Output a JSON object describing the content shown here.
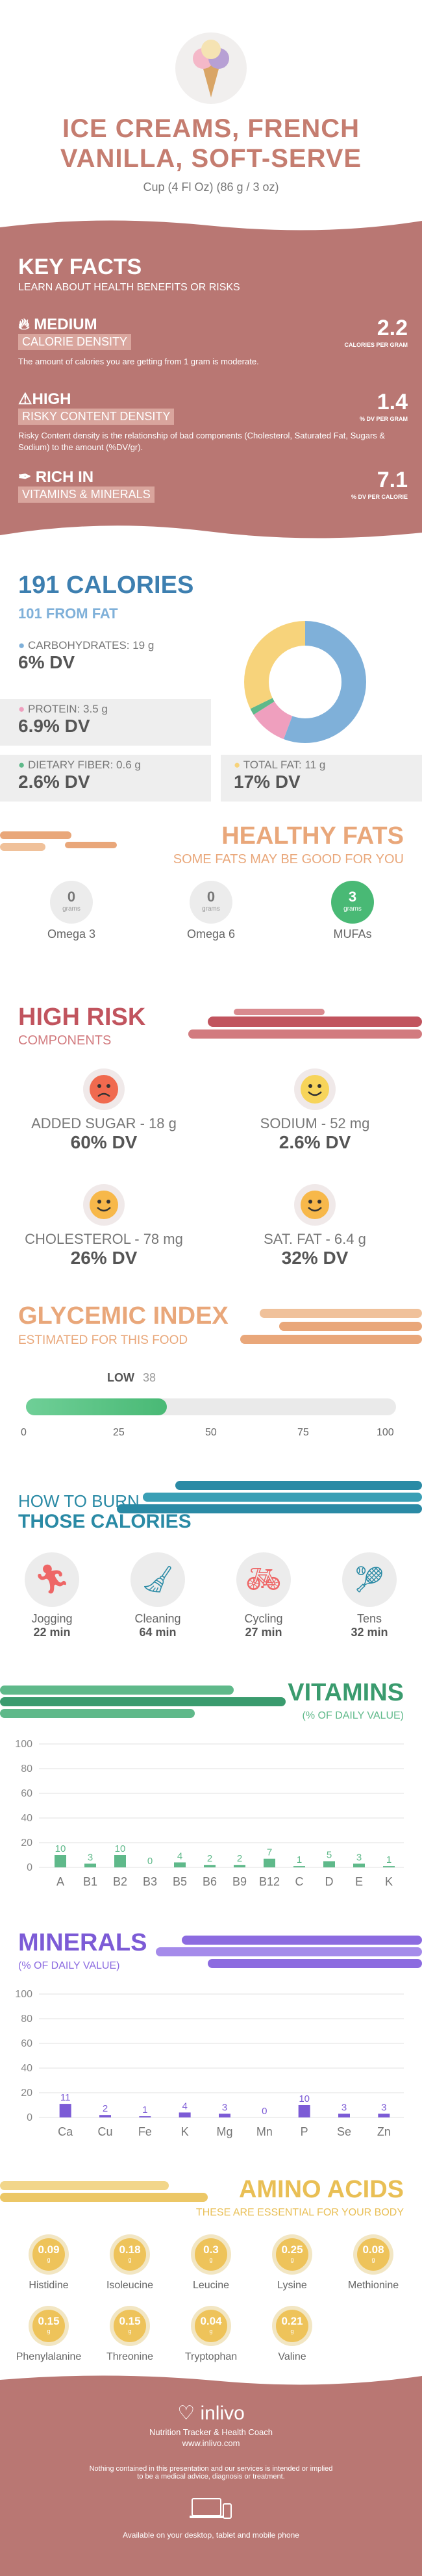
{
  "header": {
    "title_line1": "ICE CREAMS, FRENCH",
    "title_line2": "VANILLA, SOFT-SERVE",
    "serving": "Cup (4 Fl Oz) (86 g / 3 oz)"
  },
  "key_facts": {
    "title": "KEY FACTS",
    "subtitle": "LEARN ABOUT HEALTH BENEFITS OR RISKS",
    "items": [
      {
        "level": "MEDIUM",
        "name": "CALORIE DENSITY",
        "value": "2.2",
        "unit": "CALORIES PER GRAM",
        "desc": "The amount of calories you are getting from 1 gram is moderate."
      },
      {
        "level": "HIGH",
        "name": "RISKY CONTENT DENSITY",
        "value": "1.4",
        "unit": "% DV PER GRAM",
        "desc": "Risky Content density is the relationship of bad components (Cholesterol, Saturated Fat, Sugars & Sodium) to the amount (%DV/gr)."
      },
      {
        "level": "RICH IN",
        "name": "VITAMINS & MINERALS",
        "value": "7.1",
        "unit": "% DV PER CALORIE",
        "desc": ""
      }
    ]
  },
  "calories": {
    "title": "191 CALORIES",
    "from_fat": "101 FROM FAT",
    "carbs_label": "CARBOHYDRATES: 19 g",
    "carbs_dv": "6% DV",
    "protein_label": "PROTEIN: 3.5 g",
    "protein_dv": "6.9% DV",
    "fiber_label": "DIETARY FIBER: 0.6 g",
    "fiber_dv": "2.6% DV",
    "fat_label": "TOTAL FAT: 11 g",
    "fat_dv": "17% DV",
    "colors": {
      "carbs": "#7fb0d9",
      "protein": "#ef9fbe",
      "fiber": "#5fb98a",
      "fat": "#f7d37b"
    }
  },
  "chart_data": [
    {
      "type": "pie",
      "title": "",
      "categories": [
        "Carbohydrates",
        "Protein",
        "Dietary Fiber",
        "Total Fat"
      ],
      "values": [
        19,
        3.5,
        0.6,
        11
      ]
    },
    {
      "type": "bar",
      "title": "VITAMINS",
      "subtitle": "(% OF DAILY VALUE)",
      "categories": [
        "A",
        "B1",
        "B2",
        "B3",
        "B5",
        "B6",
        "B9",
        "B12",
        "C",
        "D",
        "E",
        "K"
      ],
      "values": [
        10,
        3,
        10,
        0,
        4,
        2,
        2,
        7,
        1,
        5,
        3,
        1
      ],
      "ylim": [
        0,
        100
      ],
      "yticks": [
        "0",
        "20",
        "40",
        "60",
        "80",
        "100"
      ]
    },
    {
      "type": "bar",
      "title": "MINERALS",
      "subtitle": "(% OF DAILY VALUE)",
      "categories": [
        "Ca",
        "Cu",
        "Fe",
        "K",
        "Mg",
        "Mn",
        "P",
        "Se",
        "Zn"
      ],
      "values": [
        11,
        2,
        1,
        4,
        3,
        0,
        10,
        3,
        3
      ],
      "ylim": [
        0,
        100
      ],
      "yticks": [
        "0",
        "20",
        "40",
        "60",
        "80",
        "100"
      ]
    }
  ],
  "healthy_fats": {
    "title": "HEALTHY FATS",
    "subtitle": "SOME FATS MAY BE GOOD FOR YOU",
    "items": [
      {
        "value": "0",
        "unit": "grams",
        "name": "Omega 3"
      },
      {
        "value": "0",
        "unit": "grams",
        "name": "Omega 6"
      },
      {
        "value": "3",
        "unit": "grams",
        "name": "MUFAs"
      }
    ]
  },
  "high_risk": {
    "title": "HIGH RISK",
    "subtitle": "COMPONENTS",
    "items": [
      {
        "label": "ADDED SUGAR - 18 g",
        "dv": "60% DV",
        "face": "sad"
      },
      {
        "label": "SODIUM - 52 mg",
        "dv": "2.6% DV",
        "face": "happy"
      },
      {
        "label": "CHOLESTEROL - 78 mg",
        "dv": "26% DV",
        "face": "happy"
      },
      {
        "label": "SAT. FAT - 6.4 g",
        "dv": "32% DV",
        "face": "happy"
      }
    ]
  },
  "glycemic": {
    "title": "GLYCEMIC INDEX",
    "subtitle": "ESTIMATED FOR THIS FOOD",
    "level": "LOW",
    "value": "38",
    "value_num": 38,
    "ticks": [
      "0",
      "25",
      "50",
      "75",
      "100"
    ]
  },
  "burn": {
    "title1": "HOW TO BURN",
    "title2": "THOSE CALORIES",
    "items": [
      {
        "name": "Jogging",
        "time": "22 min"
      },
      {
        "name": "Cleaning",
        "time": "64 min"
      },
      {
        "name": "Cycling",
        "time": "27 min"
      },
      {
        "name": "Tens",
        "time": "32 min"
      }
    ]
  },
  "vitamins_titles": {
    "title": "VITAMINS",
    "subtitle": "(% OF DAILY VALUE)"
  },
  "minerals_titles": {
    "title": "MINERALS",
    "subtitle": "(% OF DAILY VALUE)"
  },
  "amino": {
    "title": "AMINO ACIDS",
    "subtitle": "THESE ARE ESSENTIAL FOR YOUR BODY",
    "items": [
      {
        "value": "0.09",
        "unit": "g",
        "name": "Histidine"
      },
      {
        "value": "0.18",
        "unit": "g",
        "name": "Isoleucine"
      },
      {
        "value": "0.3",
        "unit": "g",
        "name": "Leucine"
      },
      {
        "value": "0.25",
        "unit": "g",
        "name": "Lysine"
      },
      {
        "value": "0.08",
        "unit": "g",
        "name": "Methionine"
      },
      {
        "value": "0.15",
        "unit": "g",
        "name": "Phenylalanine"
      },
      {
        "value": "0.15",
        "unit": "g",
        "name": "Threonine"
      },
      {
        "value": "0.04",
        "unit": "g",
        "name": "Tryptophan"
      },
      {
        "value": "0.21",
        "unit": "g",
        "name": "Valine"
      }
    ]
  },
  "footer": {
    "brand": "inlivo",
    "tagline": "Nutrition Tracker & Health Coach",
    "url": "www.inlivo.com",
    "disclaimer1": "Nothing contained in this presentation and our services is intended or implied",
    "disclaimer2": "to be a medical advice, diagnosis or treatment.",
    "available": "Available on your desktop, tablet and mobile phone"
  }
}
